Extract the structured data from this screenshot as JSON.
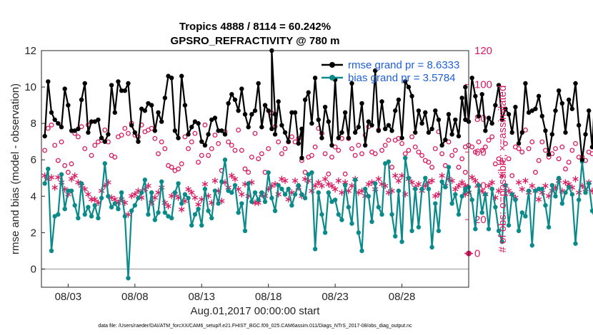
{
  "chart_data": {
    "type": "line",
    "title": "Tropics 4888 / 8114 = 60.242%",
    "subtitle": "GPSRO_REFRACTIVITY @ 780 m",
    "xlabel": "Aug.01,2017 00:00:00 start",
    "ylabel": "rmse and bias (model - observation)",
    "y2label": "# of obs: o=possible; ×=assimilated",
    "x_ticks": [
      "08/03",
      "08/08",
      "08/13",
      "08/18",
      "08/23",
      "08/28"
    ],
    "x_tick_days": [
      3,
      8,
      13,
      18,
      23,
      28
    ],
    "xlim": [
      1,
      33
    ],
    "ylim": [
      -1,
      12
    ],
    "y_ticks": [
      "0",
      "2",
      "4",
      "6",
      "8",
      "10",
      "12"
    ],
    "y2lim": [
      -20,
      120
    ],
    "y2_ticks": [
      "0",
      "20",
      "40",
      "60",
      "80",
      "100",
      "120"
    ],
    "footnote": "data file: /Users/raeder/DAI/ATM_forcXX/CAM6_setup/f.e21.FHIST_BGC.f09_025.CAM6assim.011/Diags_NTrS_2017-08/obs_diag_output.nc",
    "legend_position": "top-right",
    "colors": {
      "rmse": "#000000",
      "bias": "#0b8a8a",
      "obs": "#d81b60",
      "zero_line": "#b0b0b0",
      "legend_text": "#1f5fd6"
    },
    "series": [
      {
        "name": "rmse grand pr = 8.6333",
        "axis": "left",
        "x_start": 1.25,
        "x_step": 0.25,
        "values": [
          7.3,
          10.3,
          8.6,
          8.2,
          8.0,
          7.8,
          9.9,
          9.0,
          7.6,
          7.6,
          7.7,
          9.3,
          10.2,
          7.5,
          8.1,
          8.1,
          8.2,
          7.2,
          7.0,
          7.4,
          10.1,
          8.6,
          10.3,
          9.8,
          9.8,
          10.2,
          7.9,
          7.5,
          7.0,
          8.8,
          8.7,
          9.1,
          9.0,
          7.6,
          8.6,
          8.1,
          9.4,
          10.6,
          10.5,
          7.6,
          7.2,
          10.6,
          9.0,
          7.4,
          7.8,
          8.1,
          8.0,
          7.0,
          6.8,
          7.4,
          8.2,
          8.3,
          7.6,
          7.6,
          7.4,
          9.1,
          9.6,
          9.3,
          8.7,
          9.9,
          8.5,
          7.8,
          8.5,
          8.7,
          10.2,
          7.8,
          9.0,
          8.7,
          7.7,
          8.5,
          9.2,
          7.9,
          7.5,
          7.0,
          8.6,
          8.6,
          6.9,
          7.7,
          9.3,
          9.7,
          8.0,
          10.5,
          8.2,
          7.2,
          8.9,
          8.1,
          6.8,
          10.4,
          7.2,
          7.5,
          8.6,
          7.2,
          10.2,
          7.5,
          7.8,
          9.1,
          6.8,
          8.1,
          7.9,
          10.9,
          7.6,
          9.2,
          7.7,
          7.9,
          7.6,
          8.7,
          9.3,
          7.2,
          10.3,
          10.0,
          9.5,
          7.5,
          8.7,
          8.0,
          8.6,
          7.5,
          7.7,
          8.7,
          8.2,
          6.8,
          7.1,
          8.5,
          7.4,
          8.2,
          7.3,
          9.4,
          8.2,
          8.1,
          10.5,
          9.5,
          8.4,
          9.6,
          7.6,
          8.3,
          8.0,
          9.0,
          10.1,
          8.2,
          8.8,
          8.5,
          7.5,
          8.9,
          6.9,
          7.5,
          10.2,
          8.6,
          8.7,
          8.8,
          9.5,
          8.4,
          7.6,
          6.3,
          7.4,
          8.7,
          9.8,
          9.1,
          7.5,
          9.3,
          8.8,
          10.2,
          7.9,
          6.0,
          7.4,
          8.7,
          6.7,
          10.1,
          8.7,
          6.3,
          6.5,
          7.6,
          8.4,
          10.0,
          6.7,
          9.7,
          7.8,
          7.5,
          8.5,
          7.3,
          6.5,
          10.6,
          6.4,
          6.6,
          8.1,
          9.3,
          7.4,
          9.9,
          8.5,
          8.9,
          9.5,
          7.5,
          8.2,
          10.3,
          8.8,
          10.2,
          7.7,
          7.7,
          7.8,
          10.0
        ],
        "spikes": [
          {
            "x": 18.25,
            "y": 12.0
          },
          {
            "x": 18.5,
            "y": 7.4
          },
          {
            "x": 20.5,
            "y": 6.1
          }
        ],
        "last_point": {
          "x": 32.75,
          "y": 10.0
        }
      },
      {
        "name": "bias grand pr = 3.5784",
        "axis": "left",
        "x_start": 1.25,
        "x_step": 0.25,
        "values": [
          4.7,
          5.5,
          1.0,
          2.9,
          3.0,
          5.2,
          3.3,
          4.3,
          4.3,
          3.5,
          2.8,
          4.7,
          3.0,
          3.4,
          2.9,
          3.5,
          2.8,
          3.9,
          5.8,
          4.0,
          3.4,
          3.6,
          3.3,
          4.2,
          2.9,
          -0.5,
          3.2,
          3.5,
          3.9,
          4.2,
          4.9,
          3.0,
          4.2,
          2.7,
          3.1,
          4.8,
          3.1,
          2.9,
          2.8,
          4.2,
          4.7,
          3.6,
          4.1,
          3.9,
          2.4,
          3.0,
          3.3,
          2.4,
          4.4,
          3.2,
          2.8,
          4.3,
          3.6,
          4.8,
          6.0,
          4.3,
          4.2,
          4.6,
          3.1,
          3.6,
          2.1,
          4.7,
          3.7,
          4.2,
          3.8,
          4.2,
          3.7,
          5.3,
          3.9,
          3.2,
          4.6,
          4.4,
          4.1,
          4.4,
          3.5,
          4.1,
          4.6,
          4.1,
          3.9,
          5.2,
          5.3,
          1.1,
          4.2,
          3.0,
          2.0,
          4.2,
          3.7,
          3.8,
          3.0,
          2.7,
          4.6,
          3.4,
          2.5,
          4.9,
          2.0,
          1.0,
          4.4,
          4.0,
          2.6,
          4.7,
          3.4,
          3.0,
          5.8,
          5.9,
          3.0,
          1.8,
          4.3,
          1.5,
          6.1,
          5.0,
          2.1,
          4.4,
          2.3,
          4.4,
          5.0,
          4.4,
          1.2,
          3.6,
          2.1,
          4.8,
          4.5,
          5.6,
          3.6,
          4.1,
          3.0,
          4.0,
          4.3,
          4.5,
          3.8,
          2.2,
          4.6,
          3.1,
          4.1,
          2.2,
          4.4,
          3.4,
          2.1,
          1.5,
          4.6,
          2.4,
          4.1,
          3.8,
          2.1,
          3.1,
          2.9,
          4.3,
          1.3,
          4.3,
          4.4,
          4.4,
          3.5,
          2.3,
          4.6,
          4.0,
          5.0,
          3.6,
          4.2,
          4.5,
          4.1,
          1.4,
          3.8,
          5.9,
          4.2,
          4.7,
          3.2,
          2.7,
          3.9,
          4.3,
          3.3,
          2.5,
          2.8,
          3.9,
          1.0,
          4.5,
          4.1,
          5.3,
          4.3,
          3.9,
          3.0,
          3.3,
          3.0,
          1.5,
          3.9,
          3.2,
          3.9,
          1.9,
          4.2,
          3.8,
          4.0,
          2.9,
          3.3,
          3.4,
          0.8,
          3.9,
          4.1,
          5.0,
          3.4,
          4.3,
          4.1,
          4.0,
          4.4
        ],
        "last_point": {
          "x": 32.75,
          "y": 4.4
        }
      },
      {
        "name": "possible",
        "axis": "right",
        "marker": "circle",
        "x_start": 1.25,
        "x_step": 0.25,
        "values": [
          61,
          74,
          76,
          64,
          55,
          66,
          52,
          48,
          53,
          71,
          69,
          75,
          62,
          76,
          58,
          64,
          66,
          67,
          73,
          66,
          58,
          57,
          69,
          70,
          74,
          71,
          77,
          70,
          69,
          76,
          72,
          73,
          74,
          68,
          59,
          66,
          62,
          52,
          51,
          49,
          50,
          53,
          69,
          62,
          66,
          71,
          54,
          58,
          76,
          58,
          62,
          70,
          65,
          49,
          72,
          66,
          64,
          61,
          73,
          61,
          50,
          48,
          57,
          71,
          56,
          59,
          48,
          62,
          83,
          75,
          66,
          59,
          62,
          66,
          69,
          66,
          68,
          55,
          48,
          57,
          58,
          63,
          74,
          71,
          59,
          47,
          57,
          63,
          61,
          68,
          47,
          68,
          62,
          58,
          64,
          59,
          70,
          75,
          60,
          59,
          73,
          61,
          64,
          67,
          51,
          67,
          68,
          65,
          59,
          61,
          69,
          63,
          60,
          58,
          55,
          54,
          51,
          62,
          72,
          59,
          52,
          66,
          58,
          61,
          51,
          56,
          48,
          64,
          63,
          60,
          66,
          61,
          63,
          67,
          69,
          53,
          56,
          54,
          65,
          56,
          46,
          63,
          62,
          60,
          73,
          62,
          66,
          48,
          55,
          66,
          61,
          57,
          59,
          62,
          56,
          63,
          50,
          54,
          61,
          65,
          57,
          57,
          55,
          60,
          59,
          61,
          63,
          66,
          56,
          53,
          61,
          57,
          60,
          62,
          64,
          62,
          61,
          48,
          57,
          53,
          62,
          58,
          51,
          58,
          59,
          56,
          66,
          61,
          56,
          62,
          59,
          68,
          63,
          57,
          61,
          58,
          66,
          64,
          62,
          59,
          58,
          63,
          66,
          61,
          68,
          72,
          65,
          59,
          61,
          60,
          58,
          64,
          62,
          61
        ],
        "last_point": {
          "x": 32.75,
          "y": 63
        }
      },
      {
        "name": "assimilated",
        "axis": "right",
        "marker": "asterisk",
        "x_start": 1.25,
        "x_step": 0.25,
        "values": [
          46,
          44,
          45,
          39,
          45,
          42,
          38,
          35,
          44,
          46,
          42,
          40,
          38,
          35,
          32,
          32,
          30,
          37,
          40,
          42,
          33,
          32,
          30,
          32,
          30,
          23,
          34,
          35,
          37,
          33,
          38,
          40,
          30,
          33,
          36,
          39,
          30,
          28,
          34,
          35,
          33,
          26,
          31,
          38,
          36,
          33,
          29,
          32,
          41,
          34,
          30,
          43,
          37,
          31,
          42,
          39,
          46,
          44,
          38,
          35,
          41,
          34,
          42,
          30,
          30,
          35,
          34,
          38,
          40,
          41,
          35,
          44,
          43,
          32,
          36,
          43,
          39,
          34,
          44,
          43,
          37,
          40,
          42,
          40,
          44,
          41,
          40,
          38,
          43,
          36,
          42,
          37,
          40,
          44,
          36,
          37,
          34,
          41,
          42,
          38,
          44,
          41,
          40,
          36,
          37,
          46,
          43,
          46,
          35,
          44,
          42,
          39,
          41,
          37,
          40,
          42,
          43,
          34,
          35,
          46,
          40,
          44,
          43,
          38,
          40,
          42,
          40,
          36,
          45,
          43,
          40,
          37,
          35,
          40,
          42,
          33,
          37,
          46,
          40,
          37,
          35,
          33,
          42,
          38,
          43,
          36,
          40,
          37,
          32,
          36,
          40,
          34,
          37,
          39,
          43,
          37,
          42,
          41,
          39,
          44,
          36,
          40,
          38,
          42,
          37,
          36,
          43,
          44,
          40,
          34,
          39,
          42,
          36,
          35,
          33,
          45,
          38,
          42,
          35,
          44,
          40,
          33,
          32,
          39,
          42,
          38,
          40,
          39,
          36,
          32,
          37,
          33,
          35,
          34,
          36,
          38,
          40,
          37,
          35,
          38,
          40,
          39,
          36,
          33,
          37,
          34,
          36,
          35,
          38,
          37,
          35,
          36,
          34,
          35
        ],
        "last_point": {
          "x": 32.75,
          "y": 35
        }
      }
    ]
  }
}
